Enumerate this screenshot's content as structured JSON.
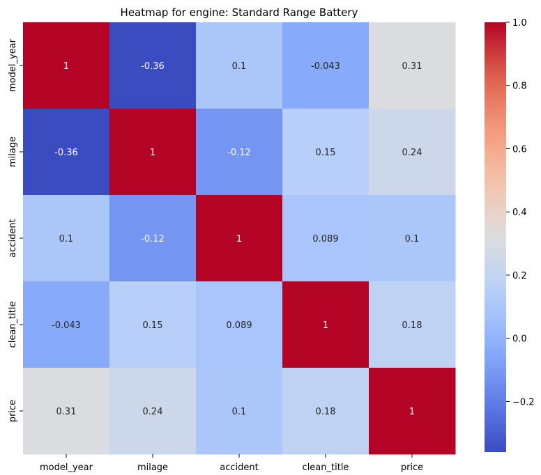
{
  "chart_data": {
    "type": "heatmap",
    "title": "Heatmap for engine: Standard Range Battery",
    "x_labels": [
      "model_year",
      "milage",
      "accident",
      "clean_title",
      "price"
    ],
    "y_labels": [
      "model_year",
      "milage",
      "accident",
      "clean_title",
      "price"
    ],
    "cell_labels": [
      [
        "1",
        "-0.36",
        "0.1",
        "-0.043",
        "0.31"
      ],
      [
        "-0.36",
        "1",
        "-0.12",
        "0.15",
        "0.24"
      ],
      [
        "0.1",
        "-0.12",
        "1",
        "0.089",
        "0.1"
      ],
      [
        "-0.043",
        "0.15",
        "0.089",
        "1",
        "0.18"
      ],
      [
        "0.31",
        "0.24",
        "0.1",
        "0.18",
        "1"
      ]
    ],
    "values": [
      [
        1,
        -0.36,
        0.1,
        -0.043,
        0.31
      ],
      [
        -0.36,
        1,
        -0.12,
        0.15,
        0.24
      ],
      [
        0.1,
        -0.12,
        1,
        0.089,
        0.1
      ],
      [
        -0.043,
        0.15,
        0.089,
        1,
        0.18
      ],
      [
        0.31,
        0.24,
        0.1,
        0.18,
        1
      ]
    ],
    "colormap": "coolwarm",
    "vmin": -0.36,
    "vmax": 1.0,
    "colorbar_ticks": [
      {
        "value": 1.0,
        "label": "1.0"
      },
      {
        "value": 0.8,
        "label": "0.8"
      },
      {
        "value": 0.6,
        "label": "0.6"
      },
      {
        "value": 0.4,
        "label": "0.4"
      },
      {
        "value": 0.2,
        "label": "0.2"
      },
      {
        "value": 0.0,
        "label": "0.0"
      },
      {
        "value": -0.2,
        "label": "−0.2"
      }
    ]
  }
}
